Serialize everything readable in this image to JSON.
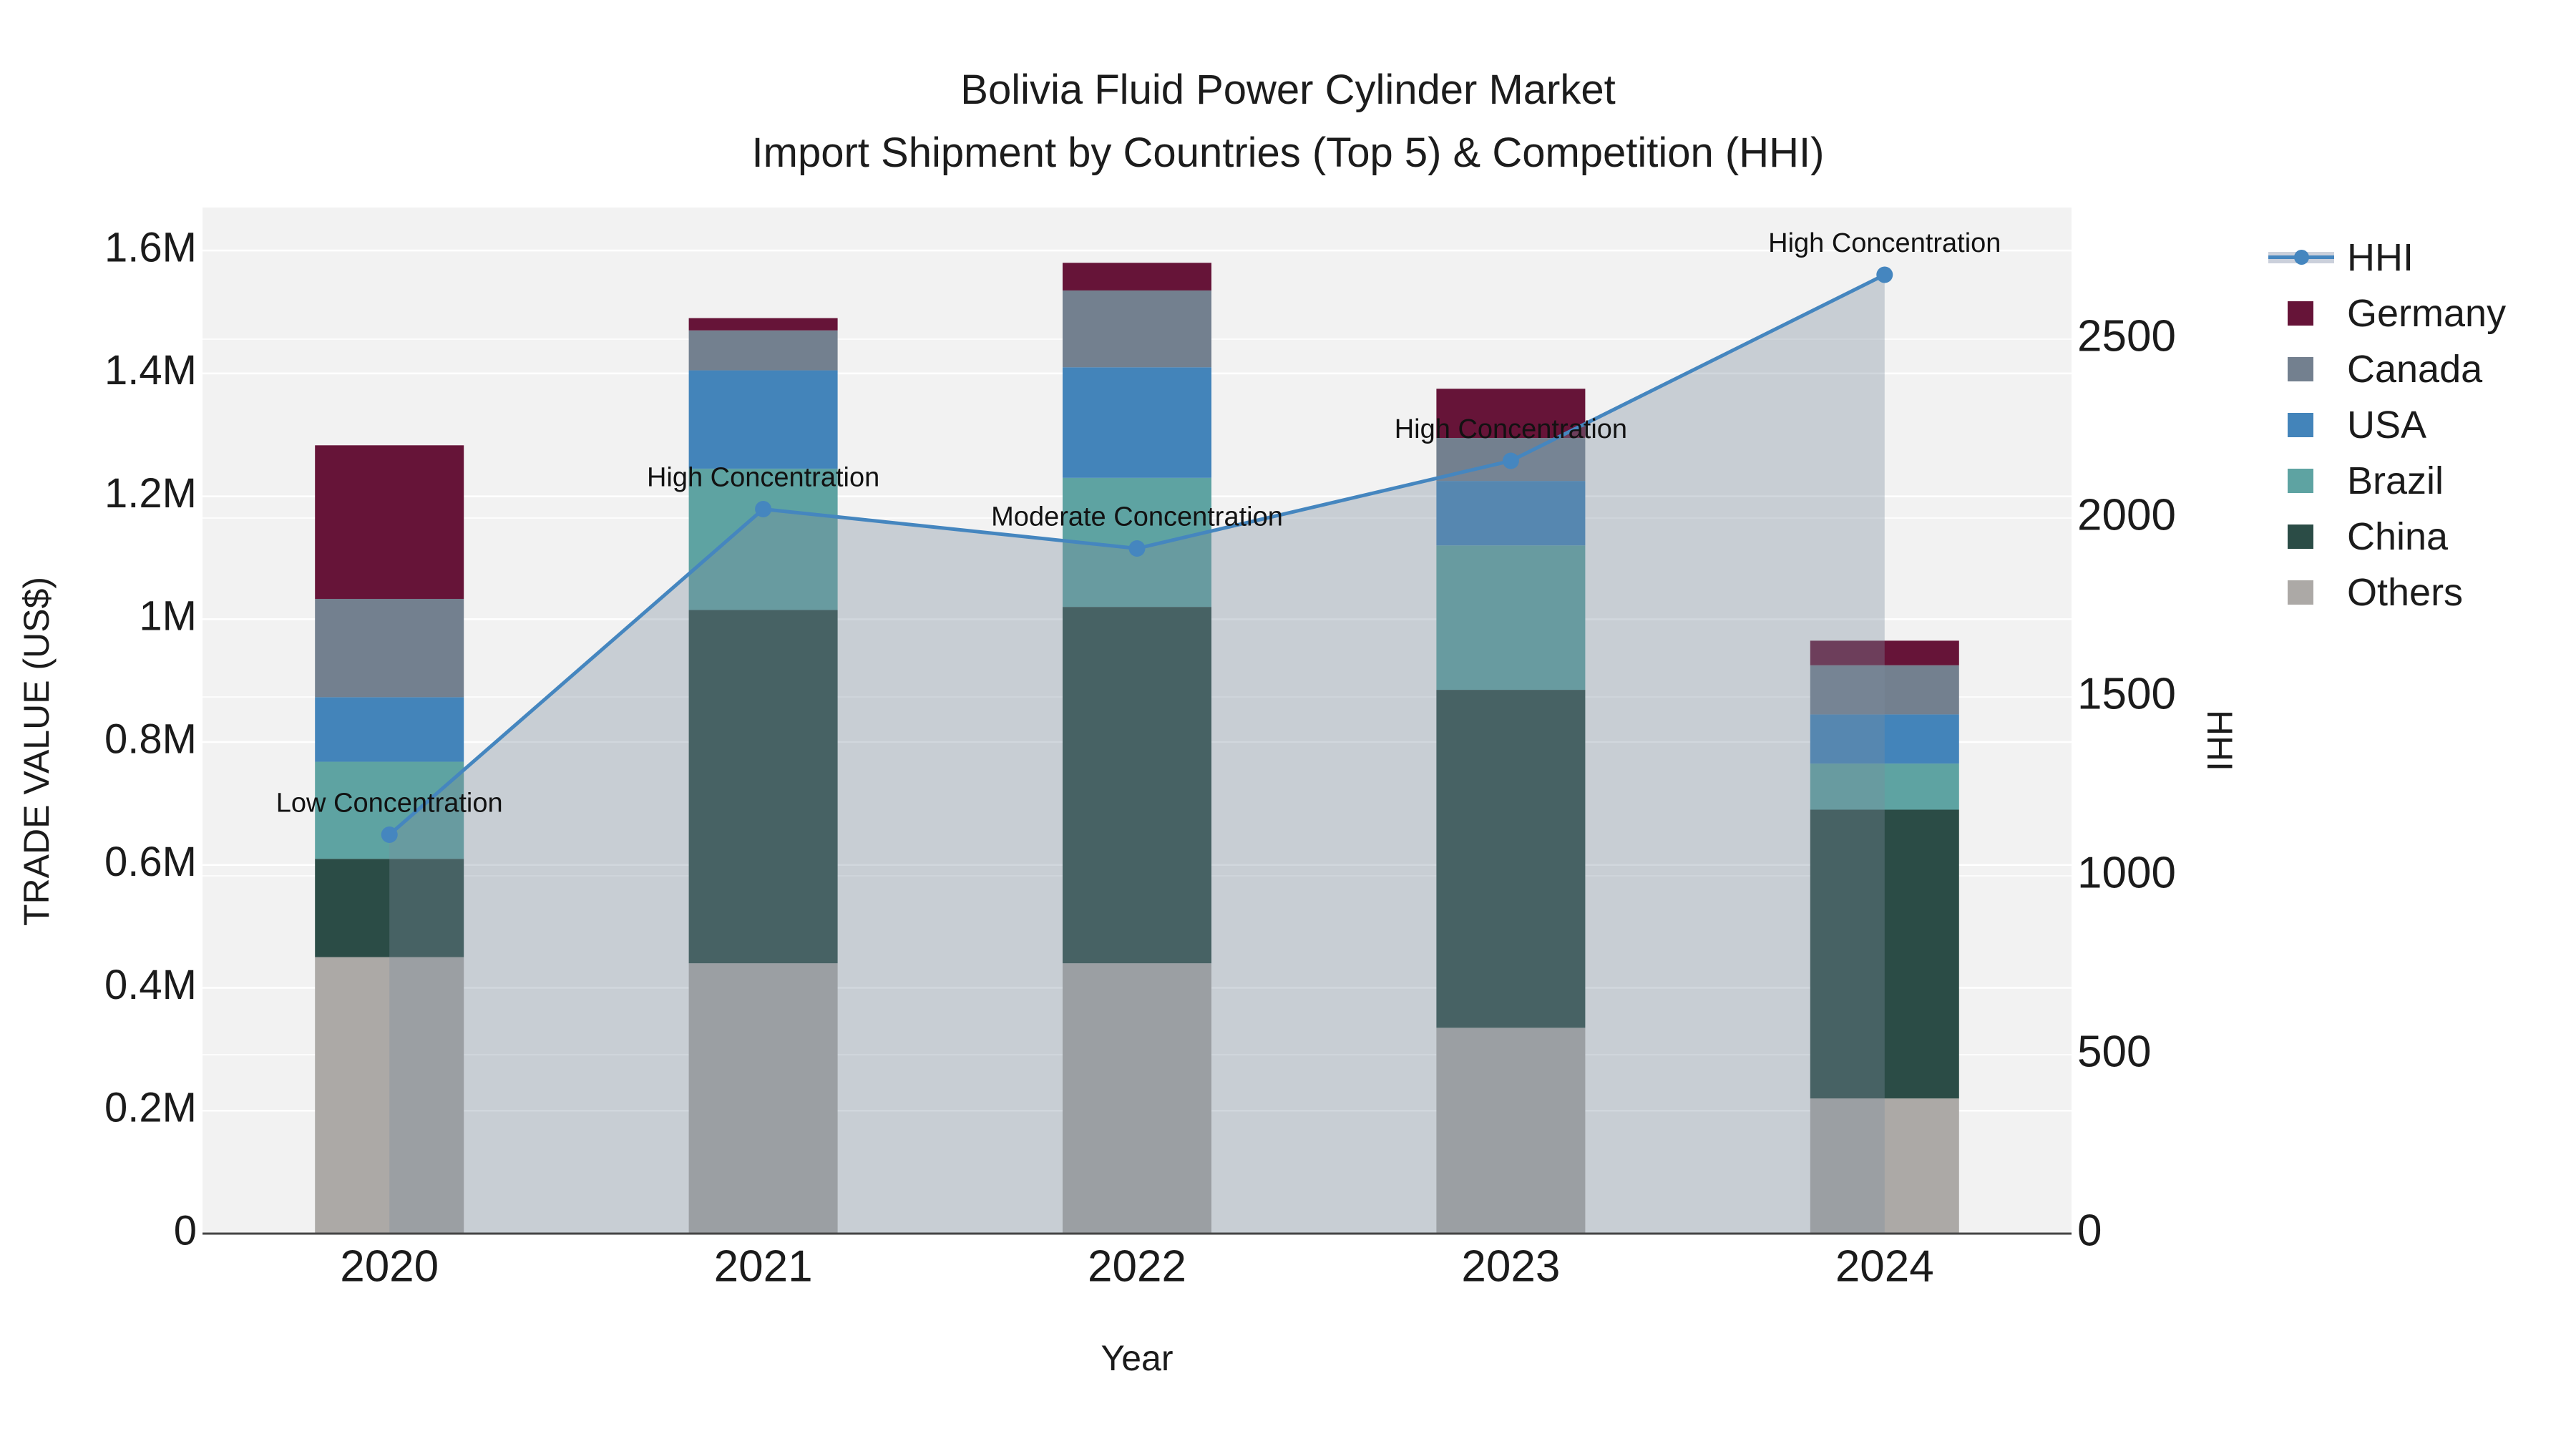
{
  "title": {
    "line1": "Bolivia Fluid Power Cylinder Market",
    "line2": "Import Shipment by Countries (Top 5) & Competition (HHI)"
  },
  "axes": {
    "left": {
      "title": "TRADE VALUE (US$)",
      "ticks": [
        {
          "value": 0,
          "label": "0"
        },
        {
          "value": 200000,
          "label": "0.2M"
        },
        {
          "value": 400000,
          "label": "0.4M"
        },
        {
          "value": 600000,
          "label": "0.6M"
        },
        {
          "value": 800000,
          "label": "0.8M"
        },
        {
          "value": 1000000,
          "label": "1M"
        },
        {
          "value": 1200000,
          "label": "1.2M"
        },
        {
          "value": 1400000,
          "label": "1.4M"
        },
        {
          "value": 1600000,
          "label": "1.6M"
        }
      ]
    },
    "right": {
      "title": "HHI",
      "ticks": [
        {
          "value": 0,
          "label": "0"
        },
        {
          "value": 500,
          "label": "500"
        },
        {
          "value": 1000,
          "label": "1000"
        },
        {
          "value": 1500,
          "label": "1500"
        },
        {
          "value": 2000,
          "label": "2000"
        },
        {
          "value": 2500,
          "label": "2500"
        }
      ]
    },
    "x": {
      "title": "Year",
      "categories": [
        "2020",
        "2021",
        "2022",
        "2023",
        "2024"
      ]
    }
  },
  "chart_data": {
    "type": "bar+line",
    "title": "Bolivia Fluid Power Cylinder Market — Import Shipment by Countries (Top 5) & Competition (HHI)",
    "xlabel": "Year",
    "ylabel_left": "TRADE VALUE (US$)",
    "ylabel_right": "HHI",
    "categories": [
      "2020",
      "2021",
      "2022",
      "2023",
      "2024"
    ],
    "stack_order": "bottom_to_top",
    "series": [
      {
        "name": "Others",
        "values_usd": [
          450000,
          440000,
          440000,
          335000,
          220000
        ]
      },
      {
        "name": "China",
        "values_usd": [
          160000,
          575000,
          580000,
          550000,
          470000
        ]
      },
      {
        "name": "Brazil",
        "values_usd": [
          158000,
          230000,
          210000,
          235000,
          75000
        ]
      },
      {
        "name": "USA",
        "values_usd": [
          105000,
          160000,
          180000,
          105000,
          80000
        ]
      },
      {
        "name": "Canada",
        "values_usd": [
          160000,
          65000,
          125000,
          70000,
          80000
        ]
      },
      {
        "name": "Germany",
        "values_usd": [
          250000,
          20000,
          45000,
          80000,
          40000
        ]
      }
    ],
    "totals_usd": [
      1283000,
      1490000,
      1580000,
      1375000,
      965000
    ],
    "hhi_line": {
      "name": "HHI",
      "values": [
        1115,
        2025,
        1915,
        2160,
        2680
      ],
      "area_fill": true
    },
    "annotations": [
      {
        "year": "2020",
        "text": "Low Concentration"
      },
      {
        "year": "2021",
        "text": "High Concentration"
      },
      {
        "year": "2022",
        "text": "Moderate Concentration"
      },
      {
        "year": "2023",
        "text": "High Concentration"
      },
      {
        "year": "2024",
        "text": "High Concentration"
      }
    ],
    "ylim_left": [
      0,
      1670000
    ],
    "ylim_right": [
      0,
      2868
    ],
    "grid": true,
    "legend_position": "right"
  },
  "legend": {
    "items": [
      {
        "label": "HHI",
        "type": "line",
        "color": "#4586BF",
        "band_color": "#CBD0DB"
      },
      {
        "label": "Germany",
        "type": "square",
        "color": "#661438"
      },
      {
        "label": "Canada",
        "type": "square",
        "color": "#73808F"
      },
      {
        "label": "USA",
        "type": "square",
        "color": "#4384BA"
      },
      {
        "label": "Brazil",
        "type": "square",
        "color": "#5EA3A2"
      },
      {
        "label": "China",
        "type": "square",
        "color": "#2B4C46"
      },
      {
        "label": "Others",
        "type": "square",
        "color": "#ACA9A6"
      }
    ]
  },
  "colors": {
    "plot_background": "#F2F2F2",
    "page_background": "#FFFFFF",
    "gridline": "#FFFFFF",
    "axis_line": "#454545",
    "hhi_line": "#4586BF",
    "hhi_area_fill_rgba": "rgba(124,139,158,0.35)",
    "text": "#1B1B1B",
    "annotation_text": "#121212"
  }
}
